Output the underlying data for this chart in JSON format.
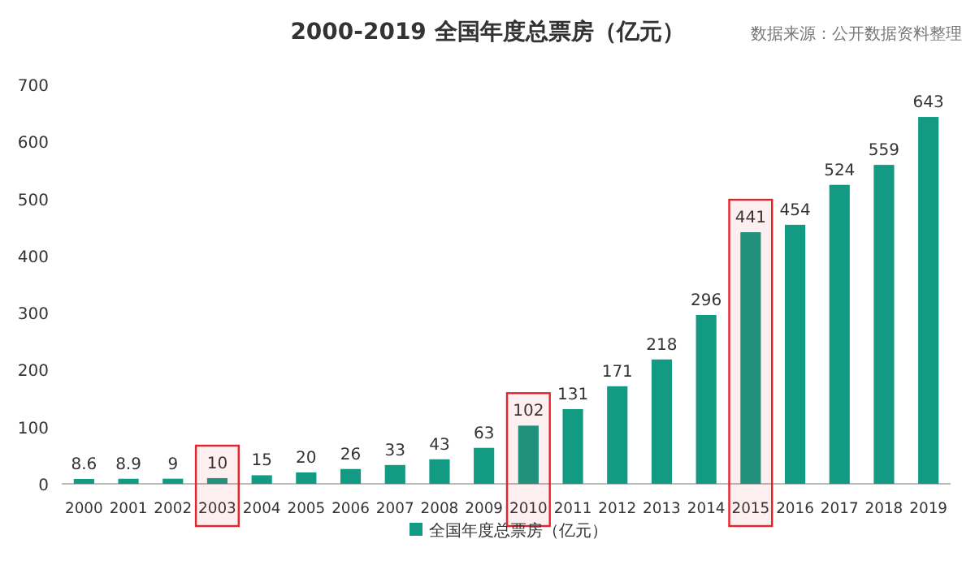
{
  "chart_data": {
    "type": "bar",
    "title": "2000-2019  全国年度总票房（亿元）",
    "annotations": [
      "数据来源：公开数据资料整理"
    ],
    "categories": [
      "2000",
      "2001",
      "2002",
      "2003",
      "2004",
      "2005",
      "2006",
      "2007",
      "2008",
      "2009",
      "2010",
      "2011",
      "2012",
      "2013",
      "2014",
      "2015",
      "2016",
      "2017",
      "2018",
      "2019"
    ],
    "series": [
      {
        "name": "全国年度总票房（亿元）",
        "color": "#139a82",
        "values": [
          8.6,
          8.9,
          9,
          10,
          15,
          20,
          26,
          33,
          43,
          63,
          102,
          131,
          171,
          218,
          296,
          441,
          454,
          524,
          559,
          643
        ]
      }
    ],
    "ylim": [
      0,
      700
    ],
    "yticks": [
      0,
      100,
      200,
      300,
      400,
      500,
      600,
      700
    ],
    "data_labels": true,
    "legend": "bottom",
    "bands": [
      {
        "axis": "x",
        "from": "2003",
        "to": "2003",
        "color": "#e8222a"
      },
      {
        "axis": "x",
        "from": "2010",
        "to": "2010",
        "color": "#e8222a"
      },
      {
        "axis": "x",
        "from": "2015",
        "to": "2015",
        "color": "#e8222a"
      }
    ]
  }
}
